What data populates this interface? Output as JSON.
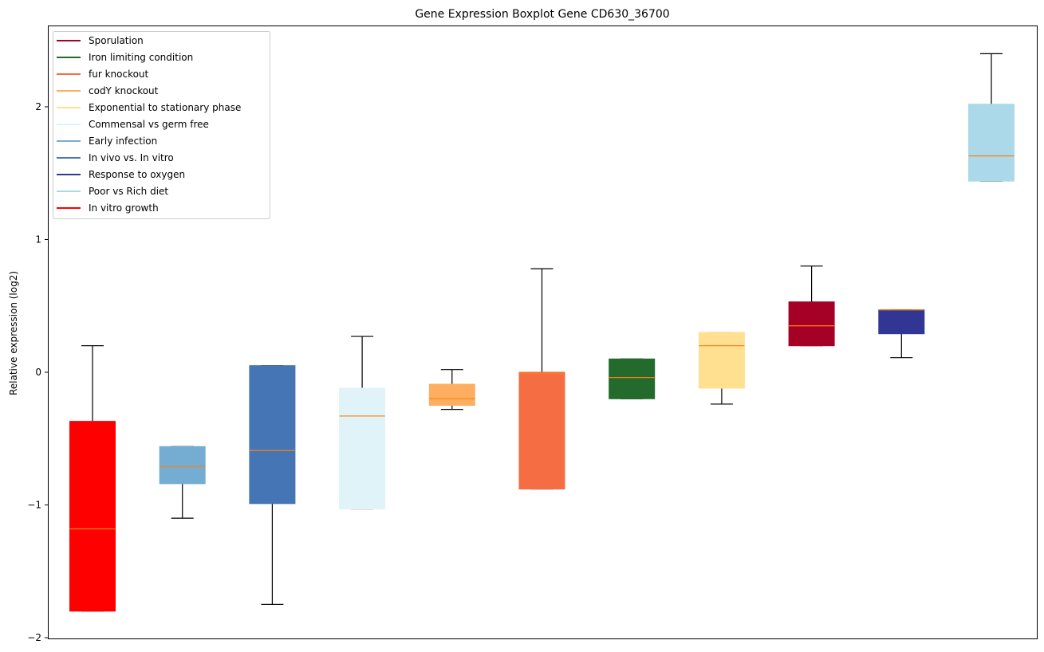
{
  "chart_data": {
    "type": "boxplot",
    "title": "Gene Expression Boxplot Gene CD630_36700",
    "xlabel": "",
    "ylabel": "Relative expression (log2)",
    "ylim": [
      -2.0,
      2.6
    ],
    "yticks": [
      2,
      1,
      0,
      -1,
      -2
    ],
    "ytick_labels": [
      "2",
      "1",
      "0",
      "−1",
      "−2"
    ],
    "grid": false,
    "legend_position": "top-left",
    "median_color": "#ff7f0e",
    "legend": [
      {
        "label": "Sporulation",
        "color": "#a50026"
      },
      {
        "label": "Iron limiting condition",
        "color": "#236b2d"
      },
      {
        "label": "fur knockout",
        "color": "#f46d43"
      },
      {
        "label": "codY knockout",
        "color": "#fdae61"
      },
      {
        "label": "Exponential to stationary phase",
        "color": "#fee090"
      },
      {
        "label": "Commensal vs germ free",
        "color": "#e0f3f8"
      },
      {
        "label": "Early infection",
        "color": "#74add1"
      },
      {
        "label": "In vivo vs. In vitro",
        "color": "#4575b4"
      },
      {
        "label": "Response to oxygen",
        "color": "#313695"
      },
      {
        "label": "Poor vs Rich diet",
        "color": "#abd9e9"
      },
      {
        "label": "In vitro growth",
        "color": "#ff0000"
      }
    ],
    "boxes": [
      {
        "name": "In vitro growth",
        "color": "#ff0000",
        "whisker_low": -1.8,
        "q1": -1.8,
        "median": -1.18,
        "q3": -0.37,
        "whisker_high": 0.2
      },
      {
        "name": "Early infection",
        "color": "#74add1",
        "whisker_low": -1.1,
        "q1": -0.84,
        "median": -0.71,
        "q3": -0.56,
        "whisker_high": -0.56
      },
      {
        "name": "In vivo vs. In vitro",
        "color": "#4575b4",
        "whisker_low": -1.75,
        "q1": -0.99,
        "median": -0.59,
        "q3": 0.05,
        "whisker_high": 0.05
      },
      {
        "name": "Commensal vs germ free",
        "color": "#e0f3f8",
        "whisker_low": -1.03,
        "q1": -1.03,
        "median": -0.33,
        "q3": -0.12,
        "whisker_high": 0.27
      },
      {
        "name": "codY knockout",
        "color": "#fdae61",
        "whisker_low": -0.28,
        "q1": -0.25,
        "median": -0.2,
        "q3": -0.09,
        "whisker_high": 0.02
      },
      {
        "name": "fur knockout",
        "color": "#f46d43",
        "whisker_low": -0.88,
        "q1": -0.88,
        "median": -0.01,
        "q3": 0.0,
        "whisker_high": 0.78
      },
      {
        "name": "Iron limiting condition",
        "color": "#236b2d",
        "whisker_low": -0.2,
        "q1": -0.2,
        "median": -0.04,
        "q3": 0.1,
        "whisker_high": 0.1
      },
      {
        "name": "Exponential to stationary phase",
        "color": "#fee090",
        "whisker_low": -0.24,
        "q1": -0.12,
        "median": 0.2,
        "q3": 0.3,
        "whisker_high": 0.3
      },
      {
        "name": "Sporulation",
        "color": "#a50026",
        "whisker_low": 0.2,
        "q1": 0.2,
        "median": 0.35,
        "q3": 0.53,
        "whisker_high": 0.8
      },
      {
        "name": "Response to oxygen",
        "color": "#313695",
        "whisker_low": 0.11,
        "q1": 0.29,
        "median": 0.47,
        "q3": 0.47,
        "whisker_high": 0.47
      },
      {
        "name": "Poor vs Rich diet",
        "color": "#abd9e9",
        "whisker_low": 1.44,
        "q1": 1.44,
        "median": 1.63,
        "q3": 2.02,
        "whisker_high": 2.4
      }
    ]
  }
}
